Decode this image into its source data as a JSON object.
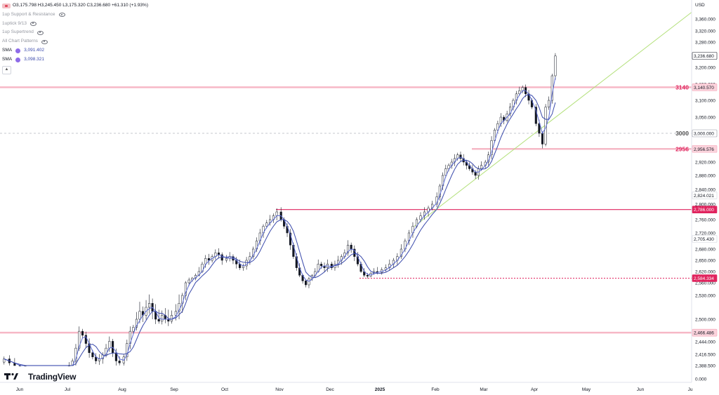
{
  "legend": {
    "ohlc": "O3,175.798 H3,245.450 L3,175.320 C3,236.680 +61.310 (+1.93%)",
    "indicators": [
      "1up Support & Resistance",
      "1uptick 9/13",
      "1up Supertrend",
      "All Chart Patterns"
    ],
    "sma1_label": "SMA",
    "sma1_value": "3,091.402",
    "sma2_label": "SMA",
    "sma2_value": "3,098.321",
    "collapse_icon": "chevron-up-icon"
  },
  "watermark": "TradingView",
  "currency": "USD",
  "colors": {
    "up": "#131722",
    "down": "#131722",
    "sma_fast": "#5b6bd4",
    "sma_slow": "#3949ab",
    "trendline": "#b3e07a",
    "level_red": "#e0245e",
    "level_pink": "#f4a7b9",
    "level_gray": "#9598a1"
  },
  "chart_data": {
    "type": "candlestick",
    "x_ticks": [
      "Jun",
      "Jul",
      "Aug",
      "Sep",
      "Oct",
      "Nov",
      "Dec",
      "2025",
      "Feb",
      "Mar",
      "Apr",
      "May",
      "Jun",
      "Ju"
    ],
    "y_ticks": [
      3360,
      3320,
      3280,
      3200,
      3150,
      3100,
      3050,
      2920,
      2880,
      2840,
      2800,
      2760,
      2720,
      2680,
      2650,
      2620,
      2560,
      2530,
      2500,
      2444,
      2416.5,
      2388.5,
      0.0
    ],
    "y_tick_labels": [
      "3,360.000",
      "3,320.000",
      "3,280.000",
      "3,200.000",
      "3,150.000",
      "3,100.000",
      "3,050.000",
      "2,920.000",
      "2,880.000",
      "2,840.000",
      "2,800.000",
      "2,760.000",
      "2,720.000",
      "2,680.000",
      "2,650.000",
      "2,620.000",
      "2,560.000",
      "2,530.000",
      "2,500.000",
      "2,444.000",
      "2,416.500",
      "2,388.500",
      "0.000"
    ],
    "price_tags": [
      {
        "value": 3236.68,
        "label": "3,236.680",
        "style": "last"
      },
      {
        "value": 3140.57,
        "label": "3,140.570",
        "style": "pink"
      },
      {
        "value": 3000.0,
        "label": "3,000.000",
        "style": "gray"
      },
      {
        "value": 2956.576,
        "label": "2,956.576",
        "style": "pink"
      },
      {
        "value": 2824.021,
        "label": "2,824.021",
        "style": "plain"
      },
      {
        "value": 2786.0,
        "label": "2,786.000",
        "style": "red"
      },
      {
        "value": 2705.43,
        "label": "2,705.430",
        "style": "plain"
      },
      {
        "value": 2584.334,
        "label": "2,584.334",
        "style": "red"
      },
      {
        "value": 2466.486,
        "label": "2,466.486",
        "style": "pink"
      }
    ],
    "level_labels": [
      {
        "value": 3140.57,
        "label": "3140",
        "color": "red"
      },
      {
        "value": 3000.0,
        "label": "3000",
        "color": "gray"
      },
      {
        "value": 2956.576,
        "label": "2956",
        "color": "red"
      }
    ],
    "levels": [
      {
        "value": 3140.57,
        "style": "pink_band",
        "from": "start"
      },
      {
        "value": 3000.0,
        "style": "gray_dashed",
        "from": "start"
      },
      {
        "value": 2956.576,
        "style": "pink_band",
        "from": "Feb"
      },
      {
        "value": 2786.0,
        "style": "red_solid",
        "from": "Nov"
      },
      {
        "value": 2584.334,
        "style": "red_dashed",
        "from": "Dec"
      },
      {
        "value": 2466.486,
        "style": "pink_band",
        "from": "start"
      }
    ],
    "trendline": {
      "from": {
        "date": "Feb",
        "value": 2740
      },
      "to": {
        "date": "Jul",
        "value": 3380
      }
    },
    "closes_by_month": [
      {
        "month": "Jun",
        "values": [
          2405,
          2395,
          2385,
          2380,
          2376
        ]
      },
      {
        "month": "Jul",
        "values": [
          2385,
          2400,
          2430,
          2470,
          2460,
          2440,
          2420,
          2410,
          2400,
          2405,
          2415,
          2430,
          2445,
          2420,
          2400,
          2395
        ]
      },
      {
        "month": "Aug",
        "values": [
          2410,
          2440,
          2470,
          2480,
          2500,
          2510,
          2505,
          2515,
          2520,
          2510,
          2500,
          2495,
          2505,
          2500,
          2495,
          2505
        ]
      },
      {
        "month": "Sep",
        "values": [
          2510,
          2520,
          2530,
          2560,
          2575,
          2585,
          2600,
          2620,
          2640,
          2655,
          2650,
          2660,
          2670,
          2665,
          2650
        ]
      },
      {
        "month": "Oct",
        "values": [
          2655,
          2660,
          2650,
          2640,
          2630,
          2635,
          2650,
          2660,
          2680,
          2700,
          2720,
          2740,
          2750,
          2760,
          2770,
          2780
        ]
      },
      {
        "month": "Nov",
        "values": [
          2760,
          2740,
          2720,
          2690,
          2660,
          2630,
          2600,
          2570,
          2555,
          2580,
          2600,
          2620,
          2640,
          2635,
          2630,
          2640
        ]
      },
      {
        "month": "Dec",
        "values": [
          2630,
          2640,
          2650,
          2660,
          2670,
          2690,
          2680,
          2660,
          2640,
          2620,
          2600,
          2595,
          2610,
          2620,
          2615
        ]
      },
      {
        "month": "2025",
        "values": [
          2625,
          2630,
          2640,
          2650,
          2660,
          2680,
          2700,
          2720,
          2740,
          2760,
          2770,
          2780,
          2790,
          2800
        ]
      },
      {
        "month": "Feb",
        "values": [
          2820,
          2850,
          2880,
          2900,
          2910,
          2920,
          2930,
          2940,
          2930,
          2920,
          2910,
          2900,
          2890,
          2880,
          2900,
          2910
        ]
      },
      {
        "month": "Mar",
        "values": [
          2920,
          2940,
          2980,
          3010,
          3030,
          3050,
          3040,
          3060,
          3080,
          3100,
          3120,
          3130,
          3140,
          3120,
          3100,
          3080
        ]
      },
      {
        "month": "Apr",
        "values": [
          3030,
          3000,
          2970,
          3080,
          3100,
          3175,
          3236
        ]
      }
    ]
  }
}
